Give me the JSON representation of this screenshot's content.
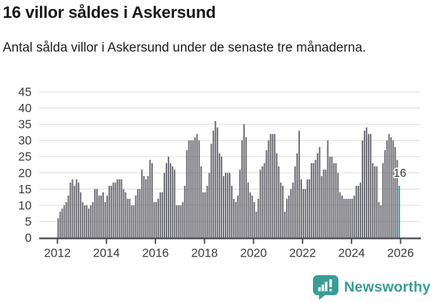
{
  "header": {
    "title": "16 villor såldes i Askersund",
    "subtitle": "Antal sålda villor i Askersund under de senaste tre månaderna."
  },
  "chart_data": {
    "type": "bar",
    "title": "16 villor såldes i Askersund",
    "subtitle": "Antal sålda villor i Askersund under de senaste tre månaderna.",
    "frequency": "monthly",
    "start": {
      "year": 2012,
      "month": 1
    },
    "end": {
      "year": 2025,
      "month": 12
    },
    "values": [
      6,
      8,
      9,
      10,
      11,
      13,
      17,
      18,
      16,
      18,
      17,
      14,
      11,
      10,
      10,
      9,
      10,
      11,
      15,
      15,
      13,
      13,
      14,
      11,
      13,
      16,
      16,
      17,
      17,
      18,
      18,
      18,
      15,
      14,
      12,
      12,
      10,
      10,
      13,
      15,
      15,
      21,
      19,
      18,
      19,
      24,
      23,
      11,
      11,
      12,
      14,
      14,
      20,
      23,
      25,
      23,
      22,
      21,
      10,
      10,
      10,
      11,
      16,
      27,
      30,
      30,
      30,
      31,
      32,
      30,
      22,
      14,
      14,
      16,
      20,
      29,
      33,
      36,
      34,
      26,
      25,
      19,
      20,
      20,
      20,
      16,
      12,
      11,
      13,
      21,
      30,
      35,
      31,
      17,
      14,
      13,
      11,
      8,
      12,
      21,
      22,
      23,
      27,
      30,
      32,
      32,
      32,
      26,
      22,
      17,
      16,
      8,
      12,
      13,
      15,
      17,
      22,
      26,
      33,
      18,
      15,
      15,
      18,
      18,
      23,
      23,
      24,
      26,
      28,
      19,
      21,
      21,
      30,
      25,
      25,
      23,
      23,
      20,
      14,
      13,
      12,
      12,
      12,
      12,
      12,
      13,
      16,
      16,
      17,
      30,
      33,
      34,
      32,
      32,
      23,
      22,
      22,
      11,
      10,
      23,
      27,
      30,
      32,
      31,
      30,
      28,
      24,
      16
    ],
    "highlight_last": true,
    "annotation": {
      "text": "16",
      "value": 16
    },
    "ylabel": "",
    "xlabel": "",
    "ylim": [
      0,
      45
    ],
    "y_ticks": [
      0,
      5,
      10,
      15,
      20,
      25,
      30,
      35,
      40,
      45
    ],
    "x_tick_labels": [
      "2012",
      "2014",
      "2016",
      "2018",
      "2020",
      "2022",
      "2024",
      "2026"
    ],
    "grid": true,
    "legend": "none",
    "colors": {
      "bar": "#6b6b72",
      "highlight": "#189b96",
      "grid": "#e2e2e2",
      "axis": "#4e4e54",
      "tick_label": "#3d3d3d",
      "annotation": "#333333"
    }
  },
  "footer": {
    "brand": "Newsworthy",
    "brand_color": "#3a9d96"
  }
}
